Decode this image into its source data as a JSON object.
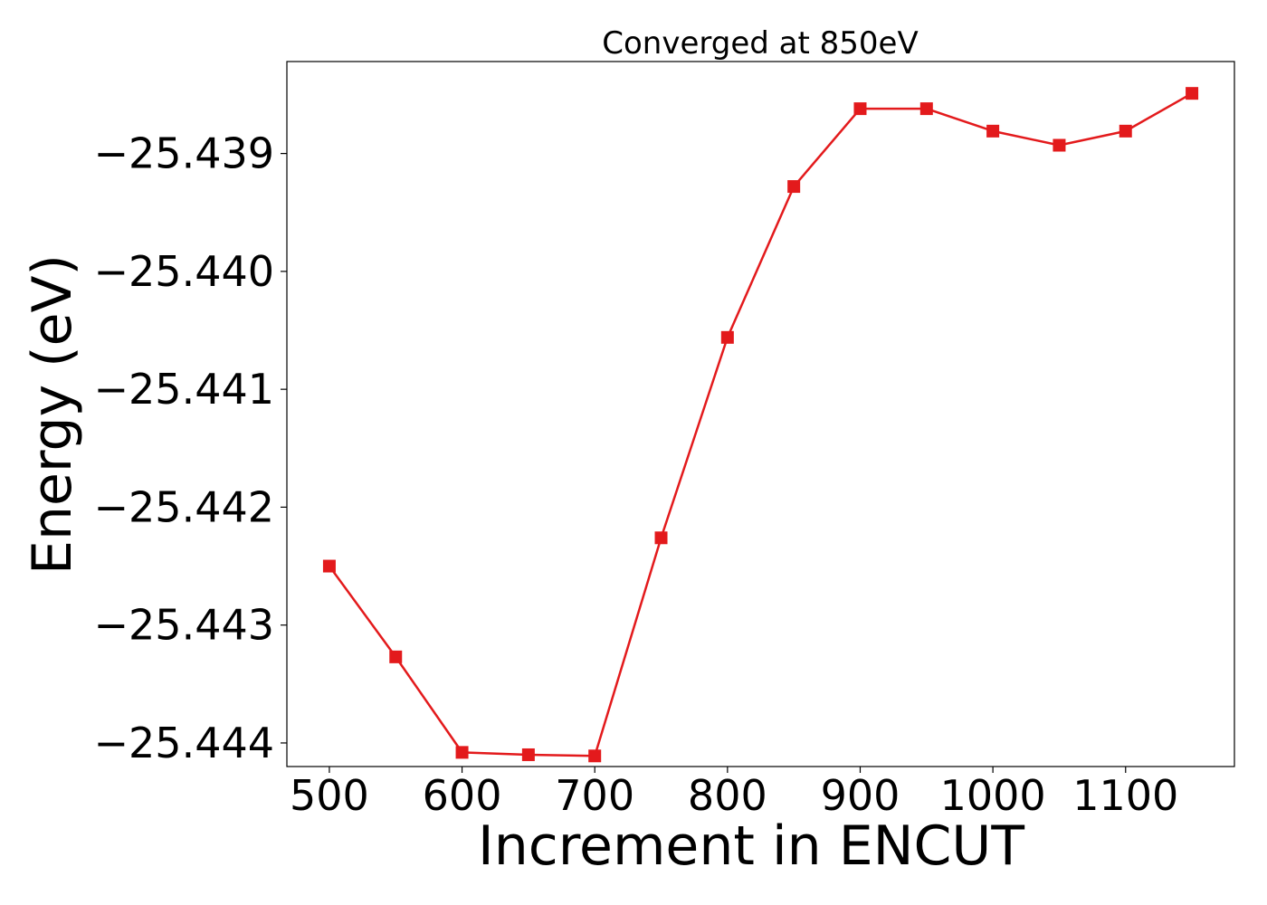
{
  "chart_data": {
    "type": "line",
    "title": "Converged at 850eV",
    "xlabel": "Increment in ENCUT",
    "ylabel": "Energy (eV)",
    "xlim": [
      468,
      1182
    ],
    "ylim": [
      -25.4442,
      -25.43822
    ],
    "x_ticks": [
      500,
      600,
      700,
      800,
      900,
      1000,
      1100
    ],
    "x_tick_labels": [
      "500",
      "600",
      "700",
      "800",
      "900",
      "1000",
      "1100"
    ],
    "y_ticks": [
      -25.439,
      -25.44,
      -25.441,
      -25.442,
      -25.443,
      -25.444
    ],
    "y_tick_labels": [
      "−25.439",
      "−25.440",
      "−25.441",
      "−25.442",
      "−25.443",
      "−25.444"
    ],
    "grid": false,
    "series": [
      {
        "color": "#e31a1c",
        "marker": "square",
        "x": [
          500,
          550,
          600,
          650,
          700,
          750,
          800,
          850,
          900,
          950,
          1000,
          1050,
          1100,
          1150
        ],
        "y": [
          -25.4425,
          -25.44327,
          -25.44408,
          -25.4441,
          -25.44411,
          -25.44226,
          -25.44056,
          -25.43928,
          -25.43862,
          -25.43862,
          -25.43881,
          -25.43893,
          -25.43881,
          -25.43849
        ]
      }
    ]
  }
}
